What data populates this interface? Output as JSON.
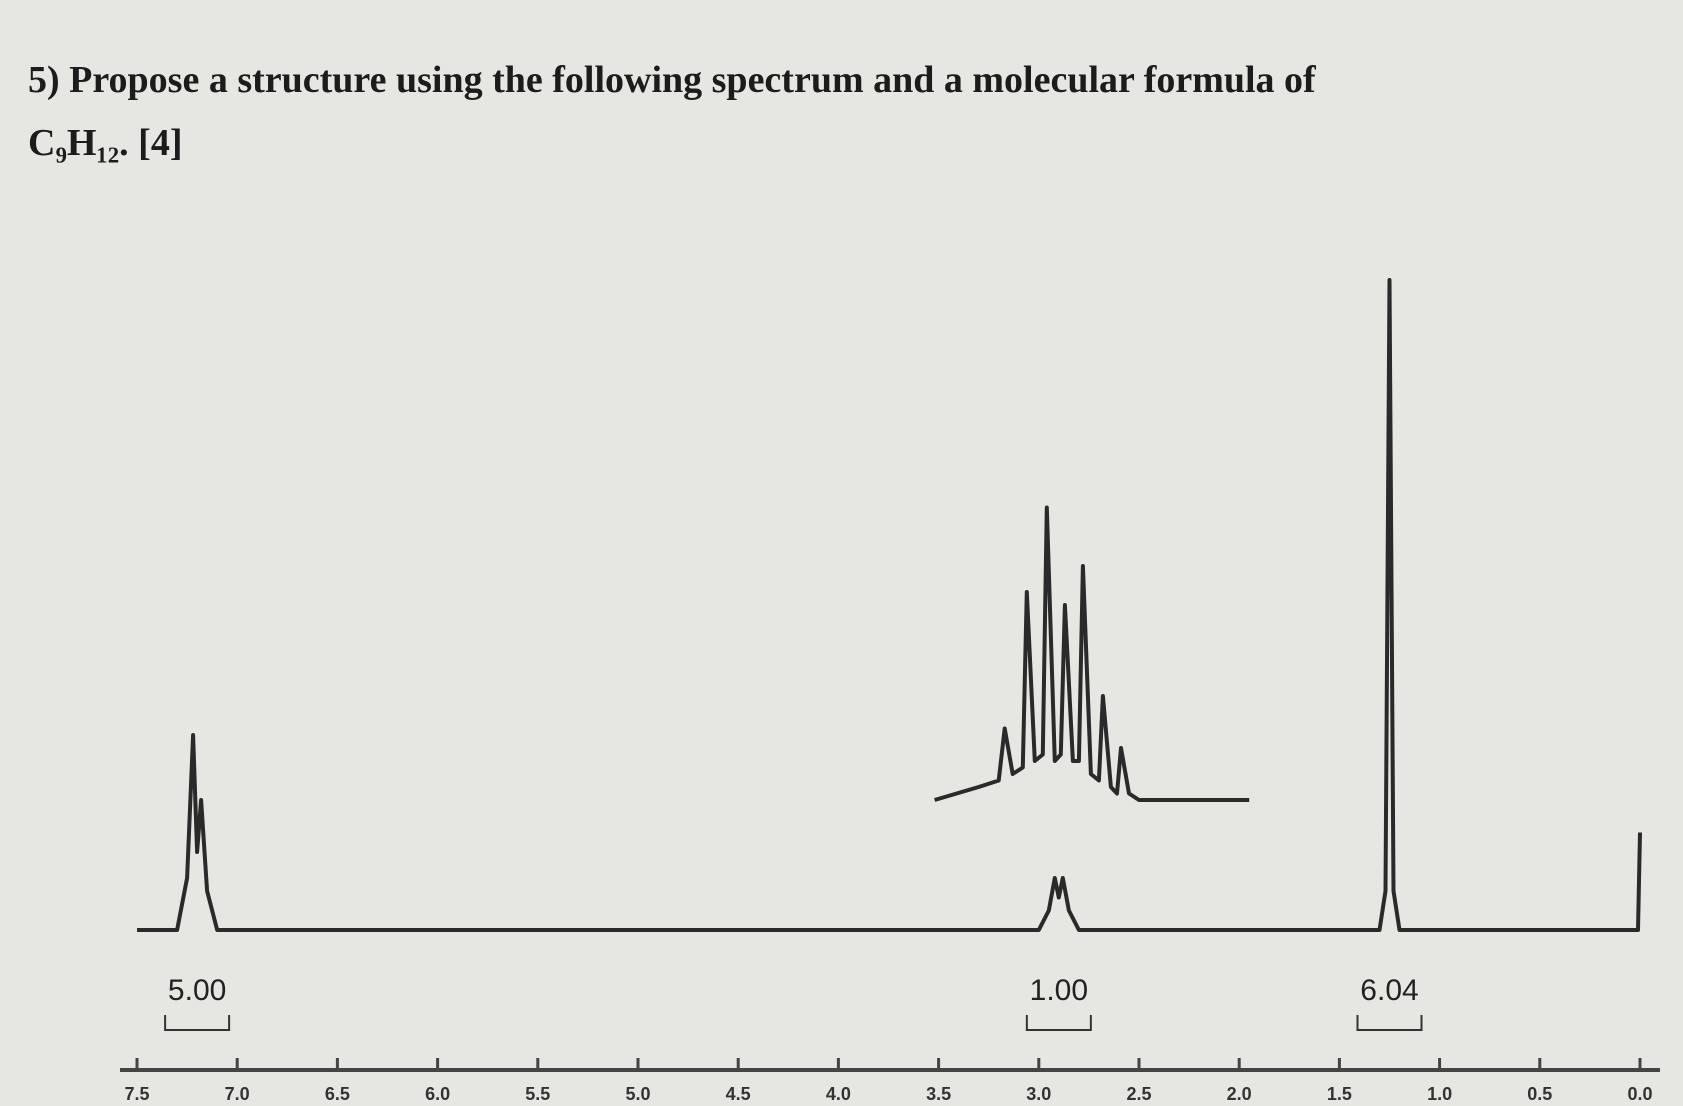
{
  "chart_data": {
    "type": "line",
    "title": "5) Propose a structure using the following spectrum and a molecular formula of",
    "subtitle": "C₉H₁₂. [4]",
    "xlim": [
      7.5,
      0
    ],
    "ylim": [
      0,
      100
    ],
    "xticks": [
      7.5,
      {
        "value": 7,
        "label": "7.0"
      },
      6.5,
      {
        "value": 6,
        "label": "6.0"
      },
      5.5,
      {
        "value": 5,
        "label": "5.0"
      },
      4.5,
      {
        "value": 4,
        "label": "4.0"
      },
      3.5,
      {
        "value": 3,
        "label": "3.0"
      },
      2.5,
      {
        "value": 2,
        "label": "2.0"
      },
      1.5,
      {
        "value": 1,
        "label": "1.0"
      },
      0.5,
      {
        "value": 0,
        "label": "0.0"
      }
    ],
    "series": [
      {
        "color": "#2a2a2a",
        "x": [
          7.5,
          7.3,
          7.25,
          7.22,
          7.2,
          7.18,
          7.15,
          7.1,
          7.0,
          3.0,
          2.95,
          2.92,
          2.9,
          2.88,
          2.85,
          2.8,
          1.4,
          1.3,
          1.27,
          1.25,
          1.23,
          1.2,
          1.1,
          0.01,
          0.0
        ],
        "values": [
          0,
          0,
          8,
          30,
          12,
          20,
          6,
          0,
          0,
          0,
          3,
          8,
          5,
          8,
          3,
          0,
          0,
          0,
          6,
          100,
          6,
          0,
          0,
          0,
          15
        ]
      },
      {
        "color": "#2a2a2a",
        "x": [
          3.52,
          3.3,
          3.2,
          3.17,
          3.13,
          3.08,
          3.06,
          3.02,
          2.98,
          2.96,
          2.92,
          2.89,
          2.87,
          2.83,
          2.8,
          2.78,
          2.74,
          2.7,
          2.68,
          2.64,
          2.61,
          2.59,
          2.55,
          2.5,
          1.95
        ],
        "values": [
          20,
          22,
          23,
          31,
          24,
          25,
          52,
          26,
          27,
          65,
          26,
          27,
          50,
          26,
          26,
          56,
          24,
          23,
          36,
          22,
          21,
          28,
          21,
          20,
          20
        ]
      }
    ],
    "integrals": {
      "x": [
        7.2,
        2.9,
        1.25
      ],
      "values": [
        5,
        1,
        6.04
      ],
      "value_labels": [
        "5.00",
        "1.00",
        "6.04"
      ]
    }
  }
}
